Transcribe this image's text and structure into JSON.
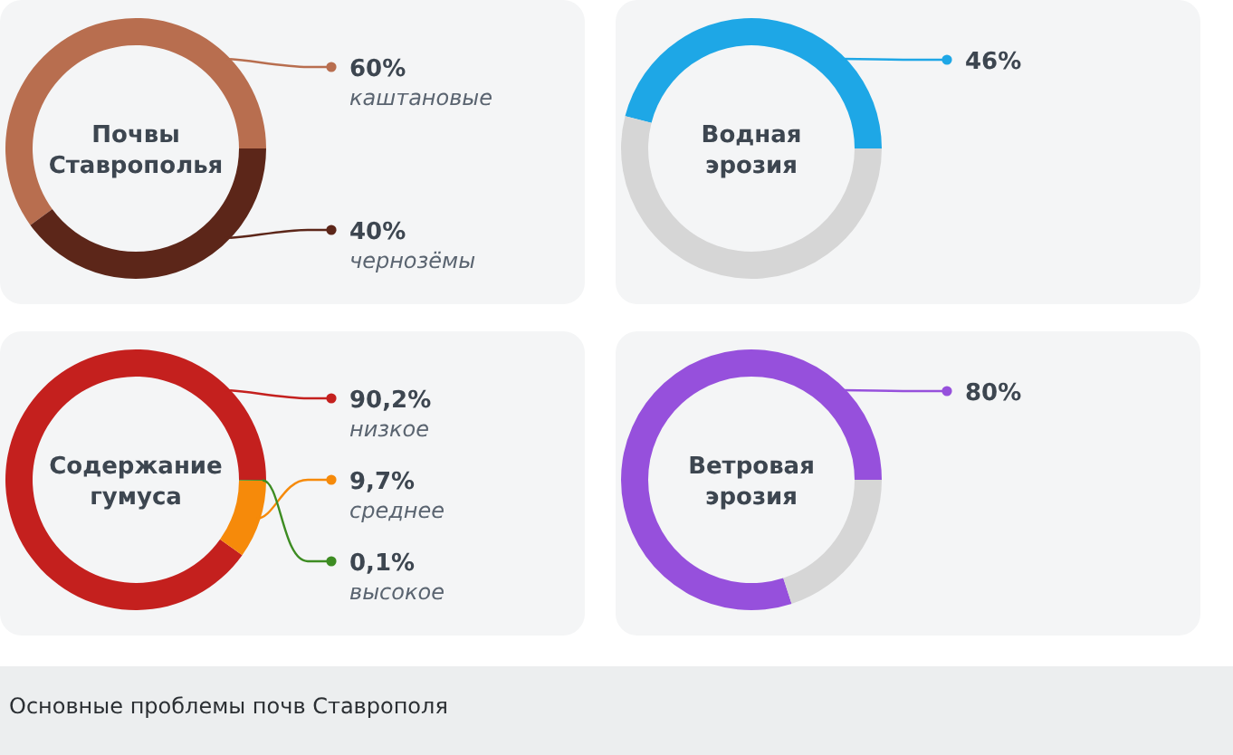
{
  "chart_data": [
    {
      "type": "donut",
      "title": "Почвы Ставрополья",
      "categories": [
        "каштановые",
        "чернозёмы"
      ],
      "values": [
        60,
        40
      ],
      "colors": [
        "#b86e4f",
        "#5c2619"
      ],
      "value_labels": [
        "60%",
        "40%"
      ],
      "legend": "right"
    },
    {
      "type": "donut",
      "title": "Водная эрозия",
      "categories": [
        null,
        null
      ],
      "values": [
        46,
        54
      ],
      "colors": [
        "#1ea7e6",
        "#d6d6d6"
      ],
      "value_labels": [
        "46%",
        null
      ]
    },
    {
      "type": "donut",
      "title": "Содержание гумуса",
      "categories": [
        "низкое",
        "среднее",
        "высокое"
      ],
      "values": [
        90.2,
        9.7,
        0.1
      ],
      "colors": [
        "#c4201e",
        "#f68a0a",
        "#3d8c22"
      ],
      "value_labels": [
        "90,2%",
        "9,7%",
        "0,1%"
      ],
      "legend": "right"
    },
    {
      "type": "donut",
      "title": "Ветровая эрозия",
      "categories": [
        null,
        null
      ],
      "values": [
        80,
        20
      ],
      "colors": [
        "#9650dc",
        "#d6d6d6"
      ],
      "value_labels": [
        "80%",
        null
      ],
      "annotations": [
        "Основные проблемы почв Ставрополя"
      ]
    }
  ]
}
